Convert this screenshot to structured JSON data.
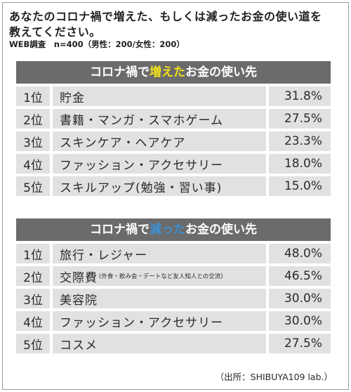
{
  "question_line1": "あなたのコロナ禍で増えた、もしくは減ったお金の使い道を",
  "question_line2": "教えてください。",
  "survey_info": "WEB調査　n=400（男性：200/女性：200）",
  "increased": {
    "header_prefix": "コロナ禍で",
    "header_highlight": "増えた",
    "header_suffix": "お金の使い先",
    "highlight_color": "#f2e21f",
    "rows": [
      {
        "rank": "1位",
        "item": "貯金",
        "note": "",
        "pct": "31.8%"
      },
      {
        "rank": "2位",
        "item": "書籍・マンガ・スマホゲーム",
        "note": "",
        "pct": "27.5%"
      },
      {
        "rank": "3位",
        "item": "スキンケア・ヘアケア",
        "note": "",
        "pct": "23.3%"
      },
      {
        "rank": "4位",
        "item": "ファッション・アクセサリー",
        "note": "",
        "pct": "18.0%"
      },
      {
        "rank": "5位",
        "item": "スキルアップ(勉強・習い事)",
        "note": "",
        "pct": "15.0%"
      }
    ]
  },
  "decreased": {
    "header_prefix": "コロナ禍で",
    "header_highlight": "減った",
    "header_suffix": "お金の使い先",
    "highlight_color": "#3c8fd3",
    "rows": [
      {
        "rank": "1位",
        "item": "旅行・レジャー",
        "note": "",
        "pct": "48.0%"
      },
      {
        "rank": "2位",
        "item": "交際費",
        "note": "(外食・飲み会・デートなど友人知人との交流)",
        "pct": "46.5%"
      },
      {
        "rank": "3位",
        "item": "美容院",
        "note": "",
        "pct": "30.0%"
      },
      {
        "rank": "4位",
        "item": "ファッション・アクセサリー",
        "note": "",
        "pct": "30.0%"
      },
      {
        "rank": "5位",
        "item": "コスメ",
        "note": "",
        "pct": "27.5%"
      }
    ]
  },
  "source": "（出所：SHIBUYA109 lab.）"
}
